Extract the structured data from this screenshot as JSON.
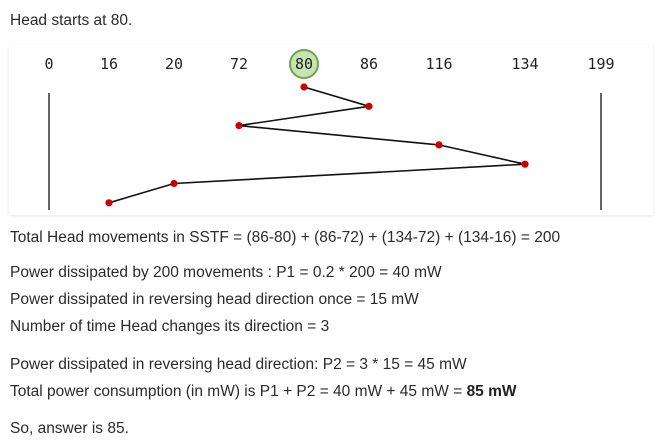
{
  "intro": "Head starts at 80.",
  "chart_data": {
    "type": "line",
    "track_labels": [
      "0",
      "16",
      "20",
      "72",
      "80",
      "86",
      "116",
      "134",
      "199"
    ],
    "start_track": "80",
    "sequence": [
      80,
      86,
      72,
      116,
      134,
      20,
      16
    ],
    "colors": {
      "point": "#cc0000",
      "line": "#111111",
      "start_circle_fill": "#c9e3b4",
      "start_circle_stroke": "#6aa84f"
    }
  },
  "text": {
    "total_movements": "Total Head movements in SSTF = (86-80) + (86-72) + (134-72) + (134-16) = 200",
    "power_movements": "Power dissipated by 200 movements : P1 = 0.2 * 200 = 40 mW",
    "power_reverse_once": "Power dissipated in reversing head direction once = 15 mW",
    "direction_changes": "Number of time Head changes its direction = 3",
    "power_reverse_total": "Power dissipated in reversing head direction: P2 = 3 * 15 = 45 mW",
    "total_power_prefix": "Total power consumption (in mW) is P1 + P2 = 40 mW + 45 mW = ",
    "total_power_bold": "85 mW",
    "answer": "So, answer is 85."
  }
}
